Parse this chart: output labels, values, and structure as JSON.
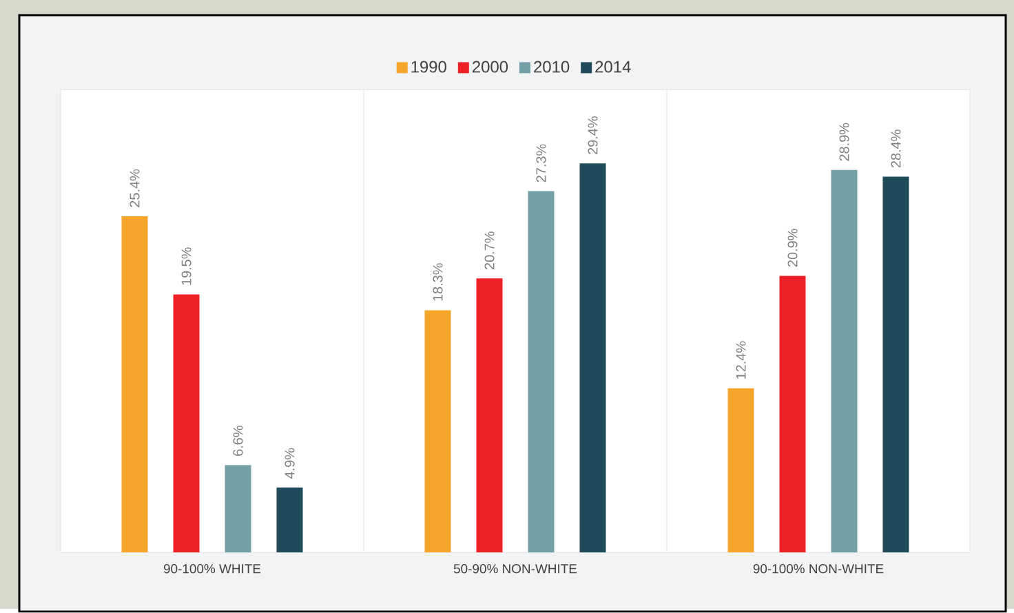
{
  "chart_data": {
    "type": "bar",
    "categories": [
      "90-100% WHITE",
      "50-90% NON-WHITE",
      "90-100% NON-WHITE"
    ],
    "series": [
      {
        "name": "1990",
        "color": "#f5a52a",
        "values": [
          25.4,
          18.3,
          12.4
        ],
        "value_labels": [
          "25.4%",
          "18.3%",
          "12.4%"
        ]
      },
      {
        "name": "2000",
        "color": "#ee2226",
        "values": [
          19.5,
          20.7,
          20.9
        ],
        "value_labels": [
          "19.5%",
          "20.7%",
          "20.9%"
        ]
      },
      {
        "name": "2010",
        "color": "#739fa7",
        "values": [
          6.6,
          27.3,
          28.9
        ],
        "value_labels": [
          "6.6%",
          "27.3%",
          "28.9%"
        ]
      },
      {
        "name": "2014",
        "color": "#1e4a5a",
        "values": [
          4.9,
          29.4,
          28.4
        ],
        "value_labels": [
          "4.9%",
          "29.4%",
          "28.4%"
        ]
      }
    ],
    "legend": "top"
  }
}
